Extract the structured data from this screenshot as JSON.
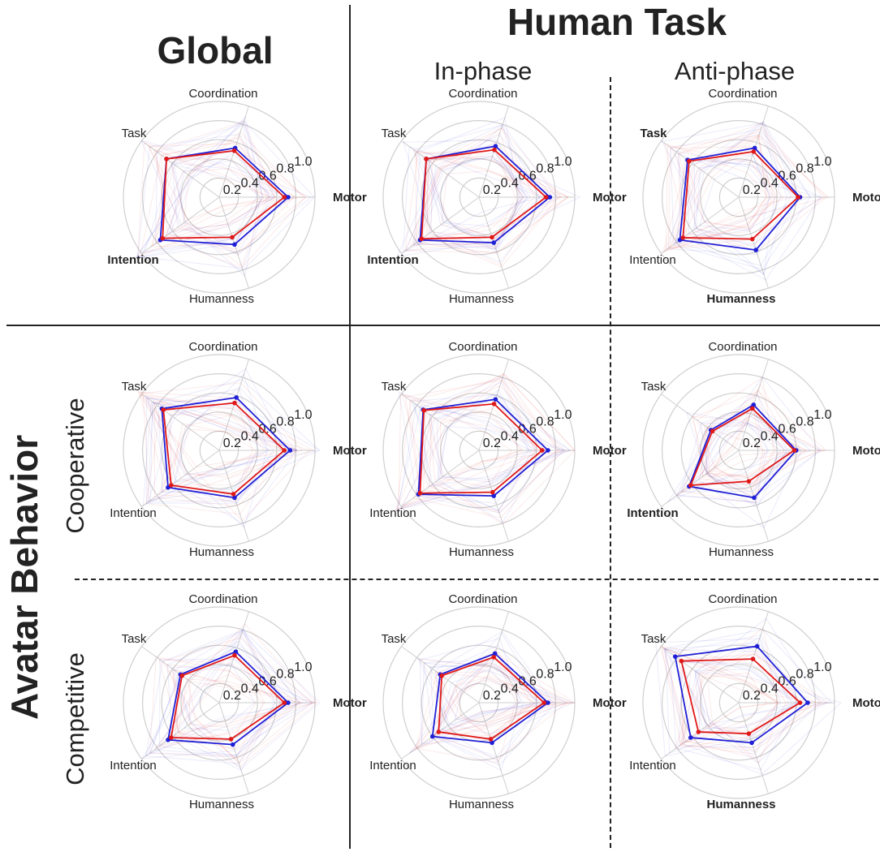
{
  "headers": {
    "global": "Global",
    "human_task": "Human Task",
    "in_phase": "In-phase",
    "anti_phase": "Anti-phase",
    "avatar_behavior": "Avatar Behavior",
    "cooperative": "Cooperative",
    "competitive": "Competitive"
  },
  "colors": {
    "series_blue": "#1f1fd6",
    "series_red": "#e01818",
    "grid": "#cfcfcf",
    "text": "#222222"
  },
  "chart_data": [
    {
      "type": "radar",
      "panel": "global-all",
      "axes": [
        "Motor",
        "Coordination",
        "Task",
        "Intention",
        "Humanness"
      ],
      "bold_axes": [
        "Motor",
        "Intention"
      ],
      "rlim": [
        0,
        1
      ],
      "rticks": [
        "0.2",
        "0.4",
        "0.6",
        "0.8",
        "1.0"
      ],
      "series": [
        {
          "values": [
            0.72,
            0.54,
            0.68,
            0.76,
            0.52
          ]
        },
        {
          "values": [
            0.68,
            0.51,
            0.68,
            0.73,
            0.44
          ]
        }
      ]
    },
    {
      "type": "radar",
      "panel": "global-in-phase",
      "axes": [
        "Motor",
        "Coordination",
        "Task",
        "Intention",
        "Humanness"
      ],
      "bold_axes": [
        "Motor",
        "Intention"
      ],
      "rlim": [
        0,
        1
      ],
      "rticks": [
        "0.2",
        "0.4",
        "0.6",
        "0.8",
        "1.0"
      ],
      "series": [
        {
          "values": [
            0.74,
            0.56,
            0.68,
            0.76,
            0.5
          ]
        },
        {
          "values": [
            0.7,
            0.52,
            0.68,
            0.74,
            0.44
          ]
        }
      ]
    },
    {
      "type": "radar",
      "panel": "global-anti-phase",
      "axes": [
        "Motor",
        "Coordination",
        "Task",
        "Intention",
        "Humanness"
      ],
      "bold_axes": [
        "Motor",
        "Task",
        "Humanness"
      ],
      "rlim": [
        0,
        1
      ],
      "rticks": [
        "0.2",
        "0.4",
        "0.6",
        "0.8",
        "1.0"
      ],
      "series": [
        {
          "values": [
            0.64,
            0.54,
            0.66,
            0.76,
            0.58
          ]
        },
        {
          "values": [
            0.62,
            0.5,
            0.64,
            0.72,
            0.46
          ]
        }
      ]
    },
    {
      "type": "radar",
      "panel": "cooperative-all",
      "axes": [
        "Motor",
        "Coordination",
        "Task",
        "Intention",
        "Humanness"
      ],
      "bold_axes": [
        "Motor"
      ],
      "rlim": [
        0,
        1
      ],
      "rticks": [
        "0.2",
        "0.4",
        "0.6",
        "0.8",
        "1.0"
      ],
      "series": [
        {
          "values": [
            0.74,
            0.58,
            0.74,
            0.66,
            0.52
          ]
        },
        {
          "values": [
            0.68,
            0.52,
            0.72,
            0.62,
            0.48
          ]
        }
      ]
    },
    {
      "type": "radar",
      "panel": "cooperative-in-phase",
      "axes": [
        "Motor",
        "Coordination",
        "Task",
        "Intention",
        "Humanness"
      ],
      "bold_axes": [
        "Motor"
      ],
      "rlim": [
        0,
        1
      ],
      "rticks": [
        "0.2",
        "0.4",
        "0.6",
        "0.8",
        "1.0"
      ],
      "series": [
        {
          "values": [
            0.72,
            0.56,
            0.72,
            0.78,
            0.5
          ]
        },
        {
          "values": [
            0.66,
            0.51,
            0.71,
            0.76,
            0.46
          ]
        }
      ]
    },
    {
      "type": "radar",
      "panel": "cooperative-anti-phase",
      "axes": [
        "Motor",
        "Coordination",
        "Task",
        "Intention",
        "Humanness"
      ],
      "bold_axes": [
        "Motor",
        "Intention"
      ],
      "rlim": [
        0,
        1
      ],
      "rticks": [
        "0.2",
        "0.4",
        "0.6",
        "0.8",
        "1.0"
      ],
      "series": [
        {
          "values": [
            0.6,
            0.5,
            0.36,
            0.64,
            0.52
          ]
        },
        {
          "values": [
            0.58,
            0.46,
            0.34,
            0.62,
            0.34
          ]
        }
      ]
    },
    {
      "type": "radar",
      "panel": "competitive-all",
      "axes": [
        "Motor",
        "Coordination",
        "Task",
        "Intention",
        "Humanness"
      ],
      "bold_axes": [
        "Motor"
      ],
      "rlim": [
        0,
        1
      ],
      "rticks": [
        "0.2",
        "0.4",
        "0.6",
        "0.8",
        "1.0"
      ],
      "series": [
        {
          "values": [
            0.72,
            0.56,
            0.5,
            0.66,
            0.46
          ]
        },
        {
          "values": [
            0.68,
            0.52,
            0.48,
            0.62,
            0.4
          ]
        }
      ]
    },
    {
      "type": "radar",
      "panel": "competitive-in-phase",
      "axes": [
        "Motor",
        "Coordination",
        "Task",
        "Intention",
        "Humanness"
      ],
      "bold_axes": [
        "Motor"
      ],
      "rlim": [
        0,
        1
      ],
      "rticks": [
        "0.2",
        "0.4",
        "0.6",
        "0.8",
        "1.0"
      ],
      "series": [
        {
          "values": [
            0.72,
            0.54,
            0.5,
            0.6,
            0.44
          ]
        },
        {
          "values": [
            0.68,
            0.5,
            0.48,
            0.52,
            0.4
          ]
        }
      ]
    },
    {
      "type": "radar",
      "panel": "competitive-anti-phase",
      "axes": [
        "Motor",
        "Coordination",
        "Task",
        "Intention",
        "Humanness"
      ],
      "bold_axes": [
        "Motor",
        "Humanness"
      ],
      "rlim": [
        0,
        1
      ],
      "rticks": [
        "0.2",
        "0.4",
        "0.6",
        "0.8",
        "1.0"
      ],
      "series": [
        {
          "values": [
            0.72,
            0.62,
            0.82,
            0.62,
            0.44
          ]
        },
        {
          "values": [
            0.64,
            0.48,
            0.74,
            0.52,
            0.34
          ]
        }
      ]
    }
  ]
}
